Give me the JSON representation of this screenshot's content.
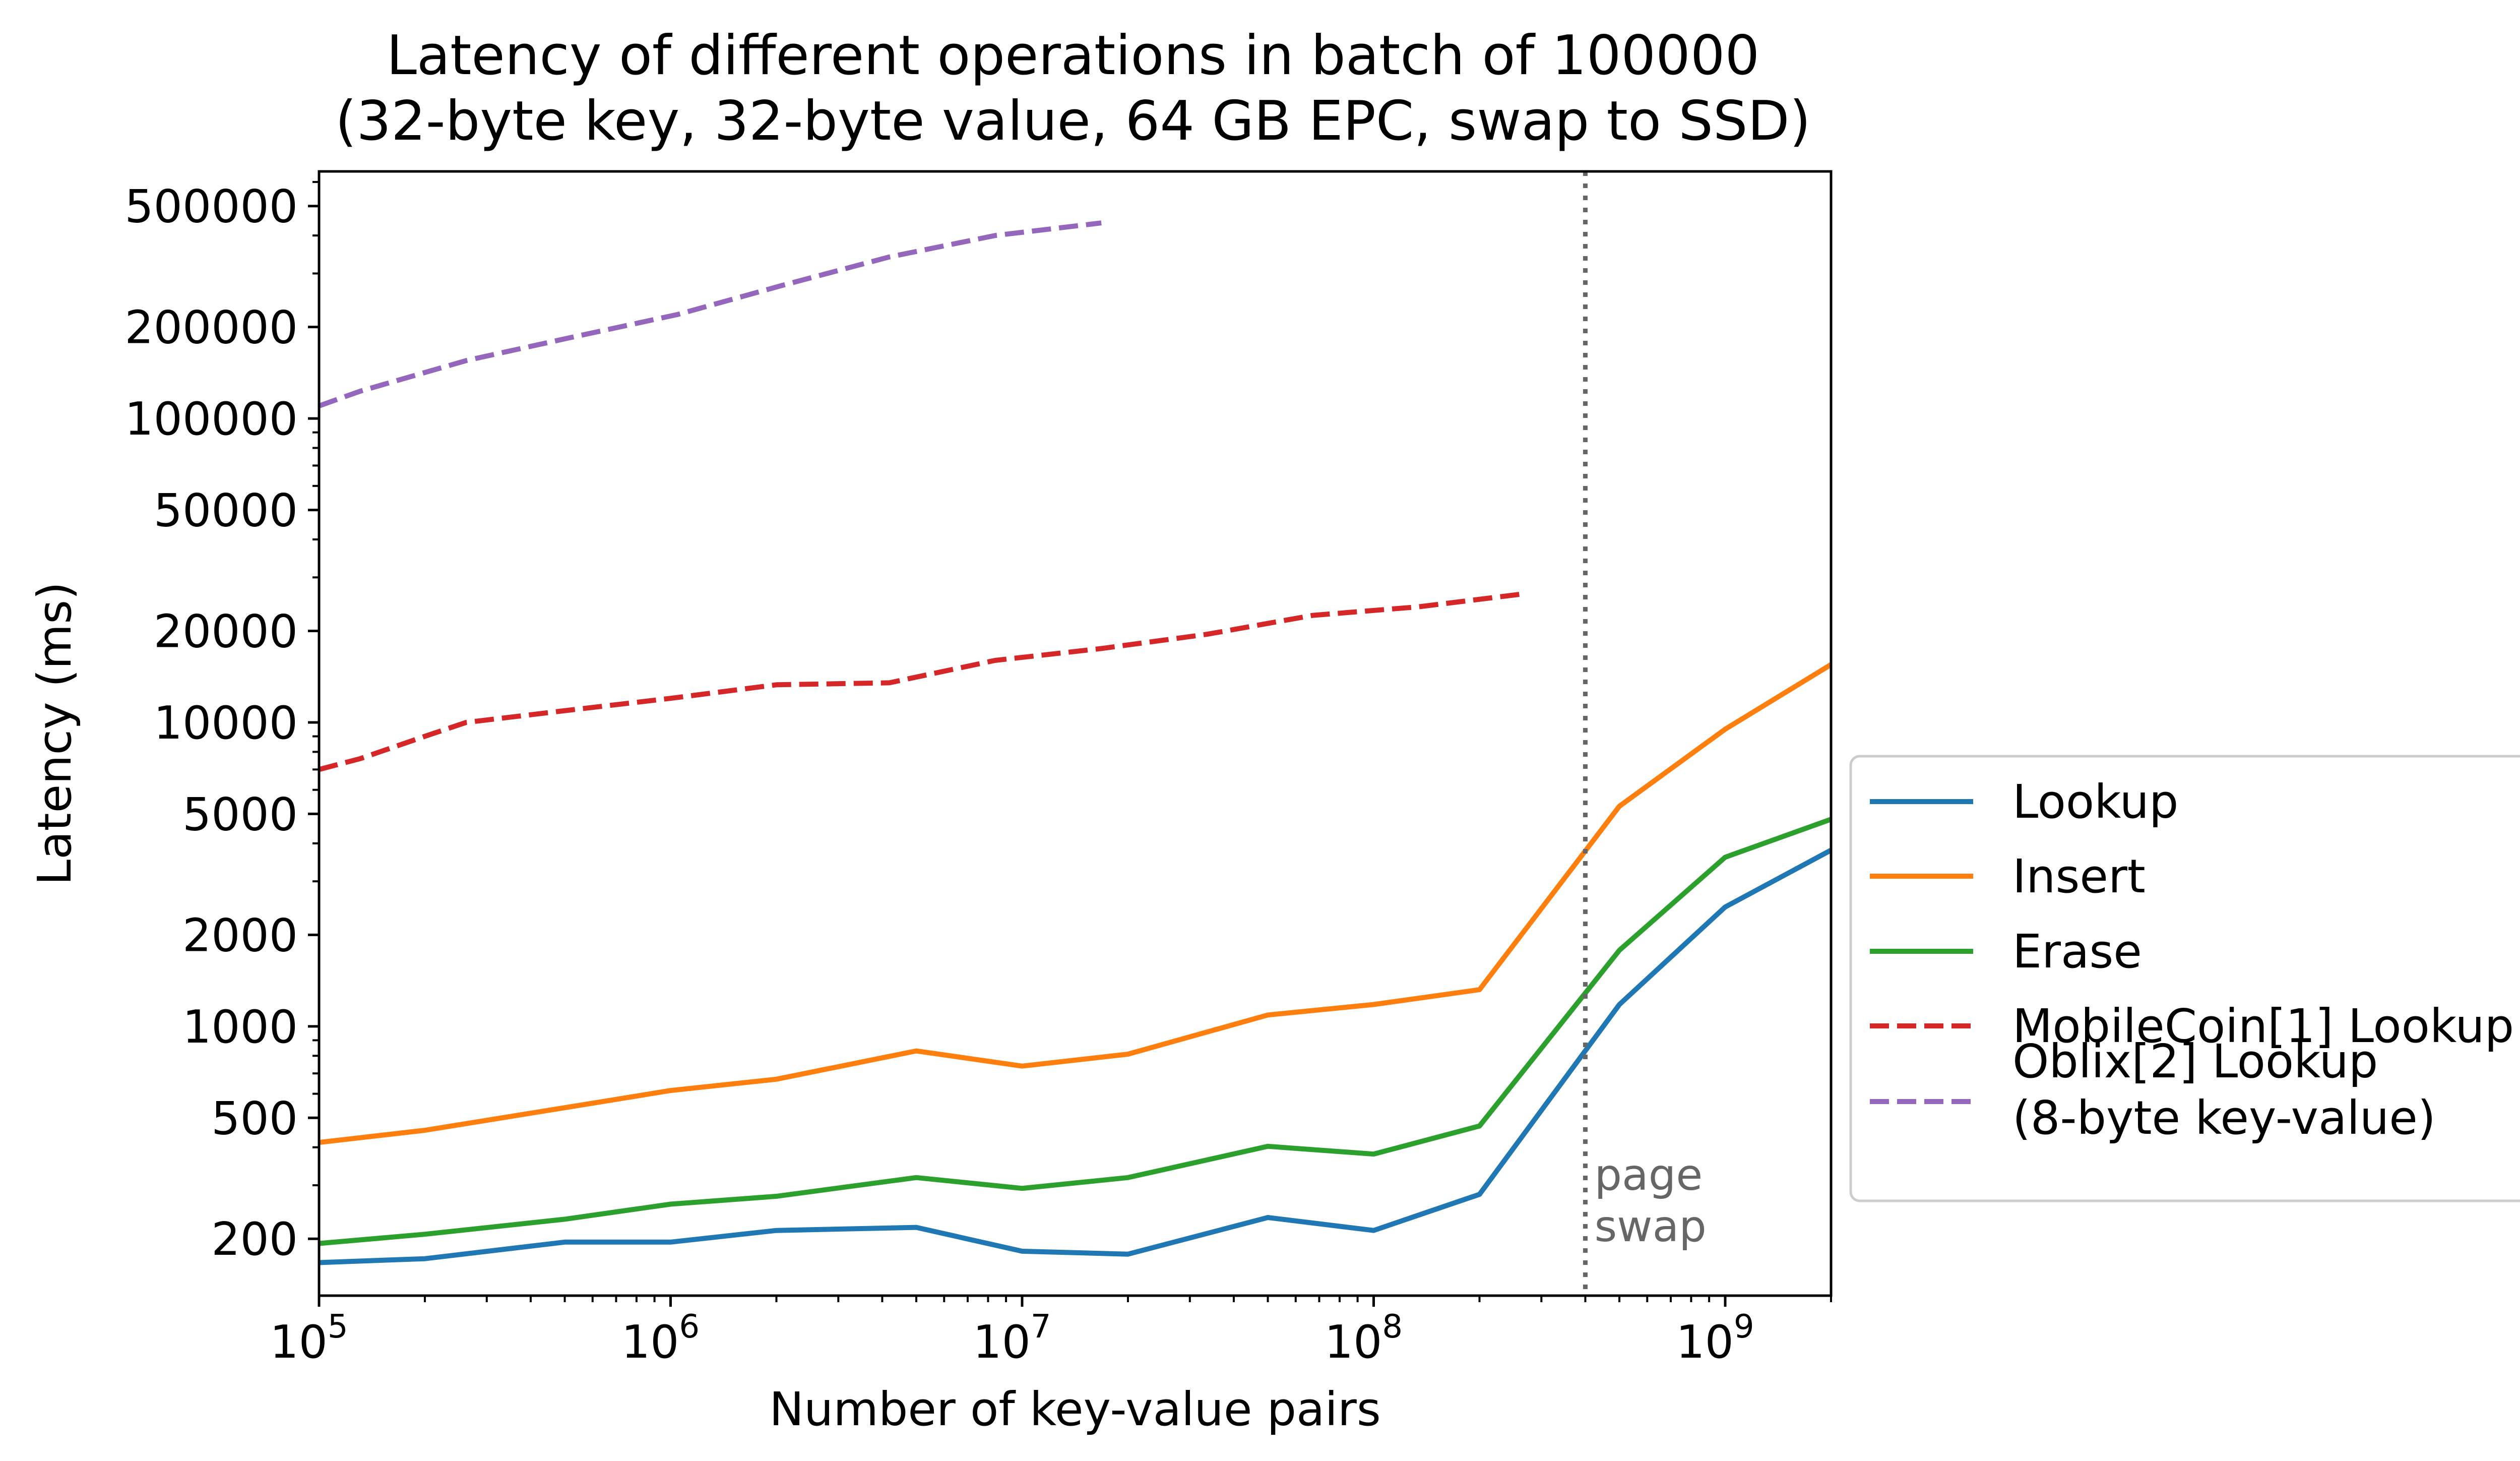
{
  "chart_data": {
    "type": "line",
    "title": "Latency of different operations in batch of 100000",
    "subtitle": "(32-byte key, 32-byte value, 64 GB EPC, swap to SSD)",
    "xlabel": "Number of key-value pairs",
    "ylabel": "Latency (ms)",
    "xscale": "log",
    "yscale": "log",
    "xlim": [
      100000,
      2000000000
    ],
    "ylim": [
      130,
      650000
    ],
    "x_tick_labels": [
      {
        "base": "10",
        "exp": "5",
        "value": 100000
      },
      {
        "base": "10",
        "exp": "6",
        "value": 1000000
      },
      {
        "base": "10",
        "exp": "7",
        "value": 10000000
      },
      {
        "base": "10",
        "exp": "8",
        "value": 100000000
      },
      {
        "base": "10",
        "exp": "9",
        "value": 1000000000
      }
    ],
    "y_tick_labels": [
      "200",
      "500",
      "1000",
      "2000",
      "5000",
      "10000",
      "20000",
      "50000",
      "100000",
      "200000",
      "500000"
    ],
    "grid": false,
    "legend_position": "outside right",
    "series": [
      {
        "name": "Lookup",
        "color": "#1f77b4",
        "style": "solid",
        "x": [
          100000,
          200000,
          500000,
          1000000,
          2000000,
          5000000,
          10000000,
          20000000,
          50000000,
          100000000,
          200000000,
          500000000,
          1000000000,
          2000000000
        ],
        "y": [
          167,
          172,
          195,
          195,
          213,
          218,
          182,
          178,
          235,
          213,
          280,
          1180,
          2470,
          3800
        ]
      },
      {
        "name": "Insert",
        "color": "#ff7f0e",
        "style": "solid",
        "x": [
          100000,
          200000,
          500000,
          1000000,
          2000000,
          5000000,
          10000000,
          20000000,
          50000000,
          100000000,
          200000000,
          500000000,
          1000000000,
          2000000000
        ],
        "y": [
          415,
          455,
          540,
          615,
          670,
          830,
          740,
          810,
          1090,
          1180,
          1320,
          5300,
          9500,
          15500
        ]
      },
      {
        "name": "Erase",
        "color": "#2ca02c",
        "style": "solid",
        "x": [
          100000,
          200000,
          500000,
          1000000,
          2000000,
          5000000,
          10000000,
          20000000,
          50000000,
          100000000,
          200000000,
          500000000,
          1000000000,
          2000000000
        ],
        "y": [
          193,
          207,
          232,
          260,
          276,
          318,
          293,
          318,
          403,
          380,
          470,
          1780,
          3600,
          4800
        ]
      },
      {
        "name": "MobileCoin[1] Lookup",
        "color": "#d62728",
        "style": "dashed",
        "x": [
          100000,
          131000,
          200000,
          262000,
          524000,
          1000000,
          2000000,
          4190000,
          8390000,
          16800000,
          33600000,
          67100000,
          134000000,
          268000000
        ],
        "y": [
          7000,
          7600,
          9000,
          10000,
          11000,
          12000,
          13300,
          13500,
          16000,
          17500,
          19500,
          22500,
          24000,
          26500
        ]
      },
      {
        "name": "Oblix[2] Lookup\n(8-byte key-value)",
        "legend_lines": [
          "Oblix[2] Lookup",
          "(8-byte key-value)"
        ],
        "color": "#9467bd",
        "style": "dashed",
        "x": [
          100000,
          131000,
          262000,
          524000,
          1050000,
          2100000,
          4190000,
          8390000,
          16800000
        ],
        "y": [
          110000,
          123000,
          155000,
          185000,
          220000,
          275000,
          340000,
          400000,
          440000
        ]
      }
    ],
    "annotations": [
      {
        "type": "vline",
        "x": 400000000,
        "color": "#666666",
        "style": "dotted",
        "text_lines": [
          "page",
          "swap"
        ]
      }
    ]
  }
}
